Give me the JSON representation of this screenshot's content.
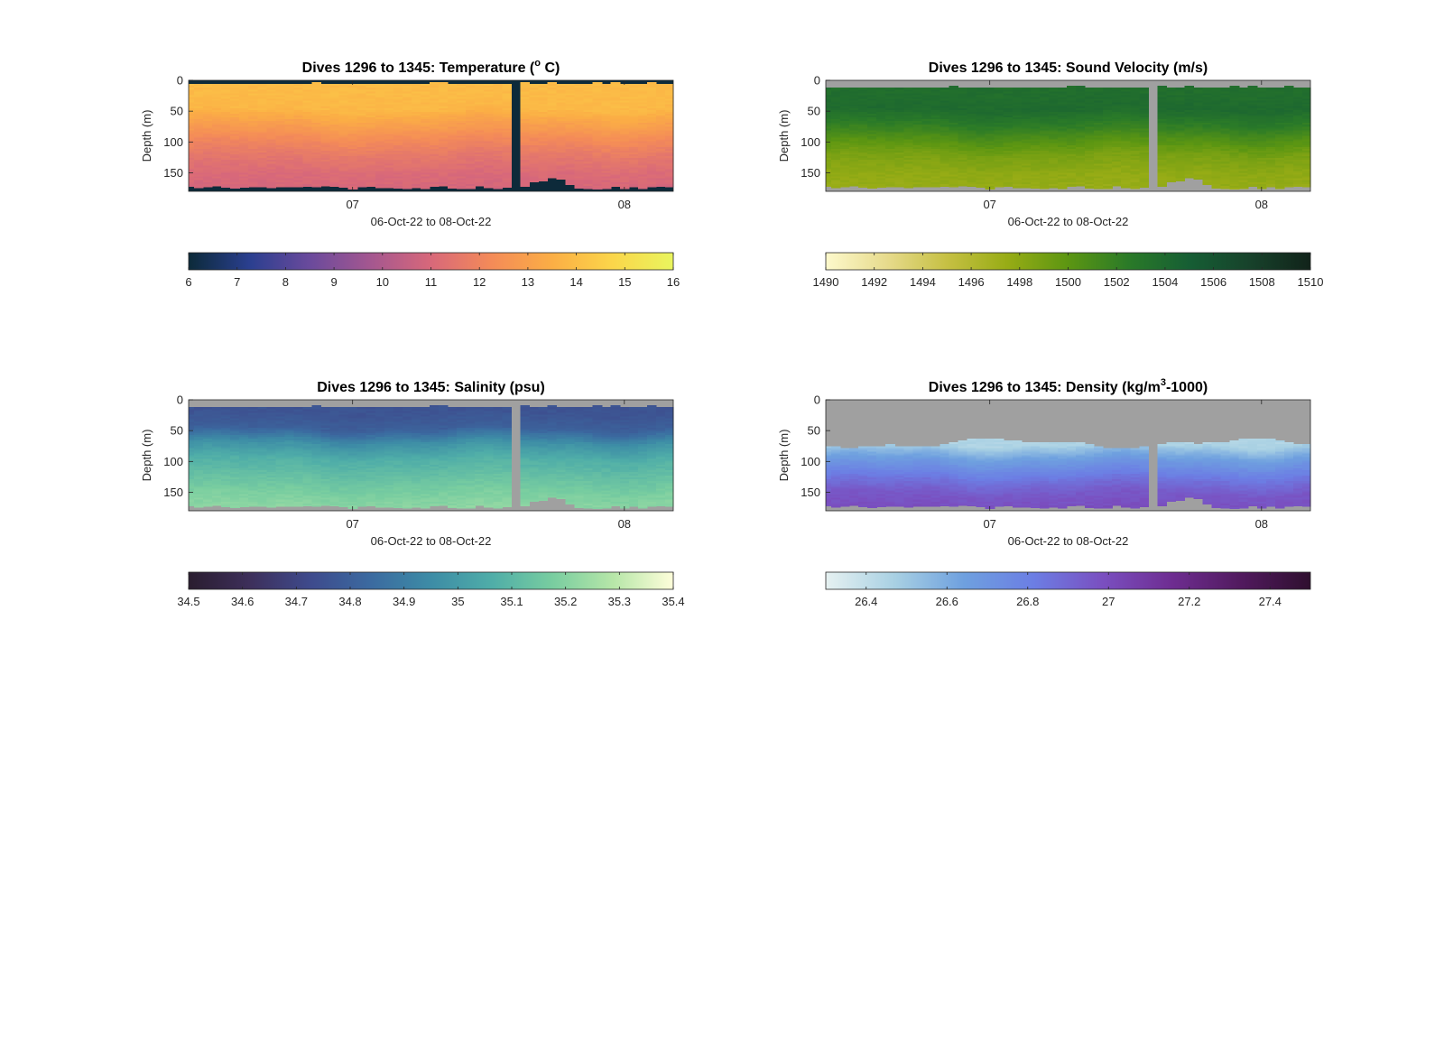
{
  "figure": {
    "background": "#ffffff",
    "nodata_color": "#a0a0a0"
  },
  "chart_data": [
    {
      "type": "heatmap",
      "variable": "temperature",
      "title_parts": [
        "Dives 1296 to 1345: Temperature (",
        "o",
        " C)"
      ],
      "xlabel": "06-Oct-22 to 08-Oct-22",
      "ylabel": "Depth (m)",
      "x_ticks": [
        "07",
        "08"
      ],
      "x_tick_dives": [
        1309,
        1339
      ],
      "y_ticks": [
        0,
        50,
        100,
        150
      ],
      "ylim": [
        0,
        180
      ],
      "dive_range": [
        1290.9,
        1344.4
      ],
      "gap_dive": [
        1327,
        1328
      ],
      "nodata_color": "#0d2a3a",
      "colorbar": {
        "range": [
          6,
          16
        ],
        "ticks": [
          "6",
          "7",
          "8",
          "9",
          "10",
          "11",
          "12",
          "13",
          "14",
          "15",
          "16"
        ],
        "colors": [
          "#0c2a39",
          "#2a3f8f",
          "#6a4a9c",
          "#a45790",
          "#d8687a",
          "#f48b58",
          "#fbae45",
          "#fbd64a",
          "#e9f55e"
        ]
      },
      "profile": {
        "depths": [
          0,
          20,
          45,
          70,
          95,
          120,
          150,
          180
        ],
        "values": [
          13.9,
          13.9,
          13.8,
          13.0,
          12.2,
          11.6,
          11.1,
          10.9
        ]
      },
      "surface_gap_m": 8,
      "bottom_depth_m": 176
    },
    {
      "type": "heatmap",
      "variable": "sound_velocity",
      "title_parts": [
        "Dives 1296 to 1345: Sound Velocity (m/s)"
      ],
      "xlabel": "06-Oct-22 to 08-Oct-22",
      "ylabel": "Depth (m)",
      "x_ticks": [
        "07",
        "08"
      ],
      "x_tick_dives": [
        1309,
        1339
      ],
      "y_ticks": [
        0,
        50,
        100,
        150
      ],
      "ylim": [
        0,
        180
      ],
      "dive_range": [
        1290.9,
        1344.4
      ],
      "gap_dive": [
        1327,
        1328
      ],
      "nodata_color": "#a0a0a0",
      "colorbar": {
        "range": [
          1490,
          1510
        ],
        "ticks": [
          "1490",
          "1492",
          "1494",
          "1496",
          "1498",
          "1500",
          "1502",
          "1504",
          "1506",
          "1508",
          "1510"
        ],
        "colors": [
          "#fdf9cc",
          "#e7db8d",
          "#c6c043",
          "#97ac15",
          "#5c9612",
          "#2a7a28",
          "#165e34",
          "#17422b",
          "#11231a"
        ]
      },
      "profile": {
        "depths": [
          0,
          20,
          45,
          70,
          95,
          120,
          150,
          180
        ],
        "values": [
          1503.6,
          1503.6,
          1503.9,
          1502.4,
          1500.5,
          1498.8,
          1497.8,
          1497.4
        ]
      },
      "surface_gap_m": 14,
      "bottom_depth_m": 176
    },
    {
      "type": "heatmap",
      "variable": "salinity",
      "title_parts": [
        "Dives 1296 to 1345: Salinity (psu)"
      ],
      "xlabel": "06-Oct-22 to 08-Oct-22",
      "ylabel": "Depth (m)",
      "x_ticks": [
        "07",
        "08"
      ],
      "x_tick_dives": [
        1309,
        1339
      ],
      "y_ticks": [
        0,
        50,
        100,
        150
      ],
      "ylim": [
        0,
        180
      ],
      "dive_range": [
        1290.9,
        1344.4
      ],
      "gap_dive": [
        1327,
        1328
      ],
      "nodata_color": "#a0a0a0",
      "colorbar": {
        "range": [
          34.5,
          35.4
        ],
        "ticks": [
          "34.5",
          "34.6",
          "34.7",
          "34.8",
          "34.9",
          "35",
          "35.1",
          "35.2",
          "35.3",
          "35.4"
        ],
        "colors": [
          "#2a1d2f",
          "#3d2f5a",
          "#3e4a8c",
          "#3b6aa0",
          "#3d8ca6",
          "#4fada8",
          "#78cda0",
          "#b6e6a8",
          "#fefeda"
        ]
      },
      "profile": {
        "depths": [
          0,
          20,
          45,
          70,
          95,
          120,
          150,
          180
        ],
        "values": [
          34.76,
          34.76,
          34.8,
          34.97,
          35.07,
          35.12,
          35.18,
          35.22
        ]
      },
      "surface_gap_m": 14,
      "bottom_depth_m": 176
    },
    {
      "type": "heatmap",
      "variable": "density",
      "title_parts": [
        "Dives 1296 to 1345: Density (kg/m",
        "3",
        "-1000)"
      ],
      "xlabel": "06-Oct-22 to 08-Oct-22",
      "ylabel": "Depth (m)",
      "x_ticks": [
        "07",
        "08"
      ],
      "x_tick_dives": [
        1309,
        1339
      ],
      "y_ticks": [
        0,
        50,
        100,
        150
      ],
      "ylim": [
        0,
        180
      ],
      "dive_range": [
        1290.9,
        1344.4
      ],
      "gap_dive": [
        1327,
        1328
      ],
      "nodata_color": "#a0a0a0",
      "colorbar": {
        "range": [
          26.3,
          27.5
        ],
        "ticks": [
          "26.4",
          "26.6",
          "26.8",
          "27",
          "27.2",
          "27.4"
        ],
        "tick_values": [
          26.4,
          26.6,
          26.8,
          27.0,
          27.2,
          27.4
        ],
        "colors": [
          "#e6f1f1",
          "#a8d0e3",
          "#6ea0df",
          "#6c7ee4",
          "#7a4fc0",
          "#6e2d91",
          "#511a5e",
          "#2f0f2f"
        ]
      },
      "profile": {
        "depths": [
          70,
          90,
          110,
          130,
          150,
          180
        ],
        "values": [
          26.45,
          26.62,
          26.75,
          26.86,
          26.95,
          27.0
        ]
      },
      "top_boundary_m": 72,
      "bottom_depth_m": 176
    }
  ]
}
